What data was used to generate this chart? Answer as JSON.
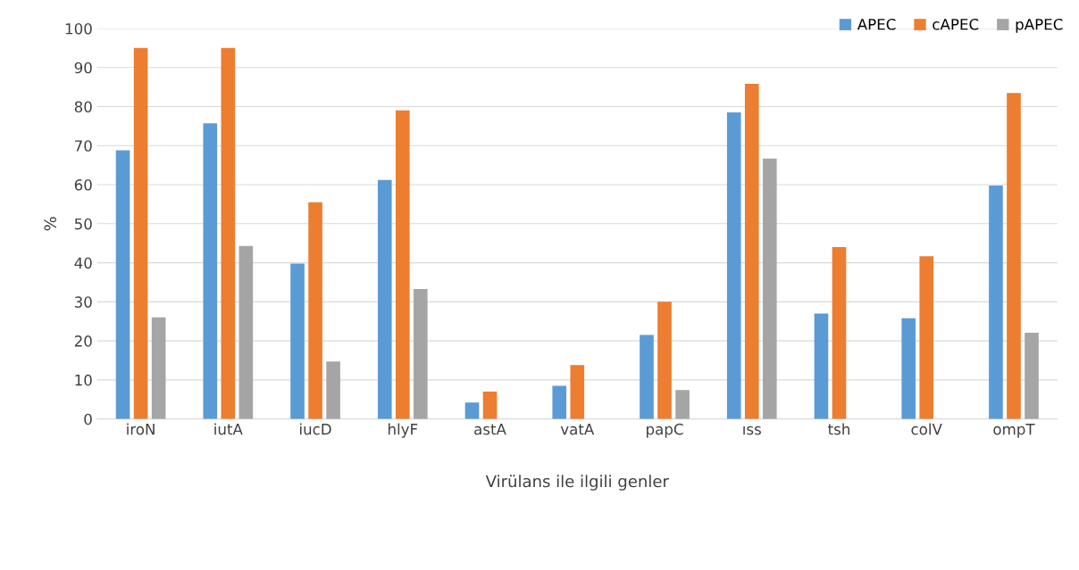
{
  "chart_data": {
    "type": "bar",
    "xlabel": "Virülans ile ilgili genler",
    "ylabel": "%",
    "categories": [
      "iroN",
      "iutA",
      "iucD",
      "hlyF",
      "astA",
      "vatA",
      "papC",
      "ıss",
      "tsh",
      "colV",
      "ompT"
    ],
    "series": [
      {
        "name": "APEC",
        "color": "#5b9bd5",
        "values": [
          68.8,
          75.7,
          39.8,
          61.2,
          4.2,
          8.5,
          21.5,
          78.5,
          27,
          25.8,
          59.8
        ]
      },
      {
        "name": "cAPEC",
        "color": "#ed7d31",
        "values": [
          95,
          95,
          55.5,
          79,
          7,
          13.8,
          30,
          85.8,
          44,
          41.7,
          83.5
        ]
      },
      {
        "name": "pAPEC",
        "color": "#a5a5a5",
        "values": [
          26,
          44.3,
          14.7,
          33.3,
          0,
          0,
          7.4,
          66.7,
          0,
          0,
          22.1
        ]
      }
    ],
    "ylim": [
      0,
      100
    ],
    "yticks": [
      0,
      10,
      20,
      30,
      40,
      50,
      60,
      70,
      80,
      90,
      100
    ],
    "grid": "y",
    "legend": "top right"
  }
}
